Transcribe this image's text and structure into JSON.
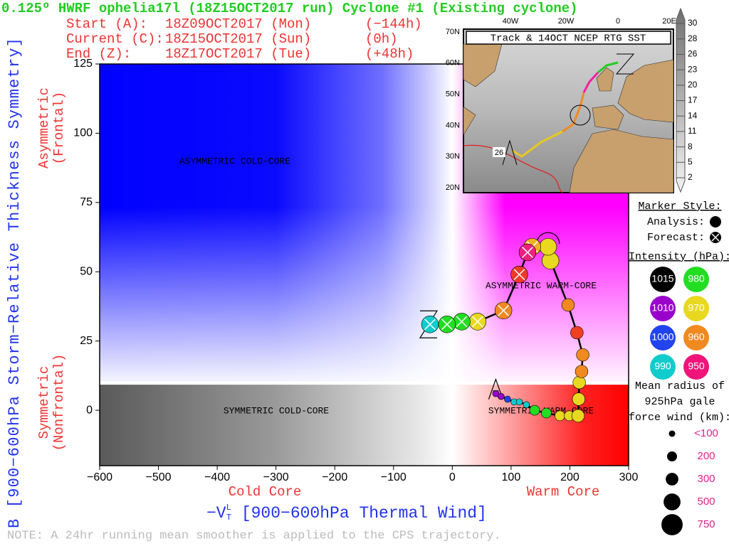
{
  "header": {
    "title": "0.125º HWRF ophelia17l (18Z15OCT2017 run) Cyclone #1 (Existing cyclone)",
    "rows": [
      [
        "Start (A):",
        "18Z09OCT2017 (Mon)",
        "(−144h)"
      ],
      [
        "Current (C):",
        "18Z15OCT2017 (Sun)",
        "(0h)"
      ],
      [
        "End (Z):",
        "18Z17OCT2017 (Tue)",
        "(+48h)"
      ]
    ]
  },
  "chart_data": {
    "type": "line",
    "ylabel": "B [900−600hPa Storm−Relative Thickness Symmetry]",
    "ylabel_upper": [
      "Asymmetric",
      "(Frontal)"
    ],
    "ylabel_lower": [
      "Symmetric",
      "(Nonfrontal)"
    ],
    "xlabel": "−V",
    "xlabel_sub": "T",
    "xlabel_sup": "L",
    "xlabel_rest": " [900−600hPa Thermal Wind]",
    "xlabel_left": "Cold Core",
    "xlabel_right": "Warm Core",
    "regions": [
      "ASYMMETRIC COLD-CORE",
      "ASYMMETRIC WARM-CORE",
      "SYMMETRIC COLD-CORE",
      "SYMMETRIC WARM-CORE"
    ],
    "symmetry_threshold": 10,
    "xlim": [
      -600,
      300
    ],
    "ylim": [
      -20,
      125
    ],
    "xticks": [
      {
        "value": -600,
        "label": "−600"
      },
      {
        "value": -500,
        "label": "−500"
      },
      {
        "value": -400,
        "label": "−400"
      },
      {
        "value": -300,
        "label": "−300"
      },
      {
        "value": -200,
        "label": "−200"
      },
      {
        "value": -100,
        "label": "−100"
      },
      0,
      100,
      200,
      300
    ],
    "yticks": [
      0,
      25,
      50,
      75,
      100,
      125
    ],
    "x": [
      74,
      83,
      94,
      105,
      114,
      126,
      140,
      160,
      183,
      199,
      214,
      215,
      216,
      220,
      222,
      212,
      197,
      167,
      163,
      136,
      128,
      114,
      87,
      43,
      16,
      -9,
      -38
    ],
    "values": [
      6,
      5,
      4,
      3,
      3,
      2,
      0,
      -1,
      -2,
      -2,
      -2,
      4,
      10,
      14,
      20,
      28,
      38,
      54,
      59,
      59,
      57,
      49,
      36,
      32,
      32,
      31,
      31
    ],
    "sizes": [
      100,
      100,
      100,
      100,
      100,
      100,
      200,
      200,
      200,
      200,
      300,
      300,
      300,
      300,
      300,
      300,
      300,
      500,
      500,
      500,
      500,
      500,
      500,
      500,
      500,
      500,
      500
    ],
    "colors": [
      "#9900cc",
      "#9900cc",
      "#2244ee",
      "#11cccc",
      "#11cccc",
      "#11cccc",
      "#22dd22",
      "#22dd22",
      "#e8d820",
      "#e8d820",
      "#e8d820",
      "#e8d820",
      "#e8d820",
      "#f08a20",
      "#f08a20",
      "#f04020",
      "#f08a20",
      "#e8d820",
      "#e8d820",
      "#f0b020",
      "#f02080",
      "#f03a2a",
      "#f08a20",
      "#e8d820",
      "#22dd22",
      "#22dd22",
      "#11cccc"
    ],
    "forecast": [
      false,
      false,
      false,
      false,
      false,
      false,
      false,
      false,
      false,
      false,
      false,
      false,
      false,
      false,
      false,
      false,
      false,
      false,
      false,
      true,
      true,
      true,
      true,
      true,
      true,
      true,
      true
    ],
    "line_color": "#000000",
    "legend": {
      "marker_style_title": "Marker Style:",
      "analysis_label": "Analysis:",
      "forecast_label": "Forecast:",
      "intensity_title": "Intensity (hPa):",
      "intensities": [
        1015,
        1010,
        1000,
        990,
        980,
        970,
        960,
        950
      ],
      "intensity_colors": [
        "#000000",
        "#9900cc",
        "#2244ee",
        "#11cccc",
        "#22dd22",
        "#e8d820",
        "#f08a20",
        "#f0147a"
      ],
      "size_title": [
        "Mean radius of",
        "925hPa gale",
        "force wind (km):"
      ],
      "sizes": [
        {
          "value": 100,
          "label": "<100"
        },
        200,
        300,
        500,
        750
      ]
    }
  },
  "inset": {
    "title": "Track & 14OCT NCEP RTG SST",
    "lat_labels": [
      "70N",
      "60N",
      "50N",
      "40N",
      "30N",
      "20N"
    ],
    "lon_labels": [
      "40W",
      "20W",
      "0",
      "20E"
    ],
    "colorbar_ticks": [
      30,
      28,
      26,
      23,
      20,
      17,
      14,
      11,
      8,
      5,
      2
    ],
    "contour_label": "26"
  },
  "note": "NOTE:  A 24hr running mean smoother is applied to the CPS trajectory."
}
